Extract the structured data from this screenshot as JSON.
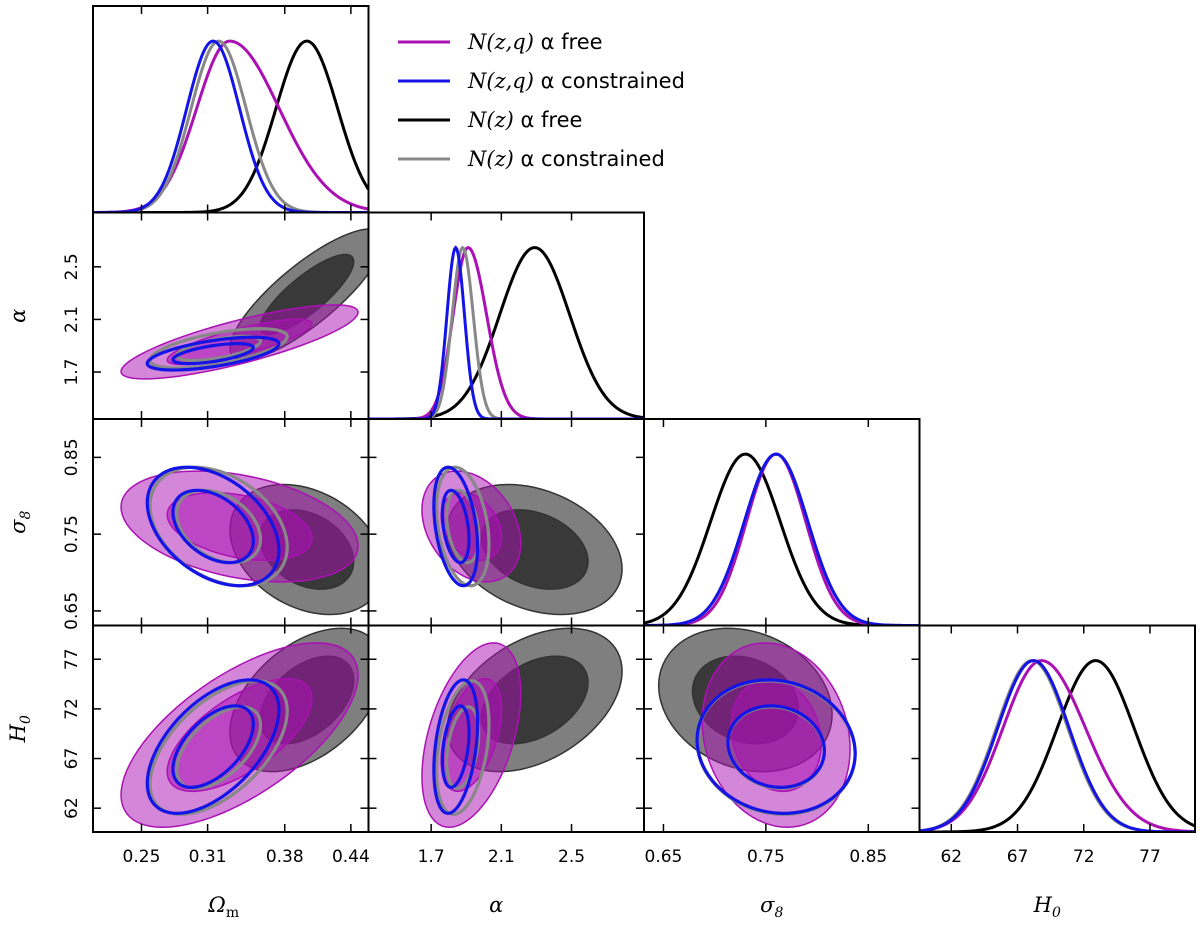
{
  "chart_data": {
    "type": "corner-plot",
    "title": "",
    "parameters": [
      {
        "key": "Om",
        "label": "Ωm",
        "label_main": "Ω",
        "label_sub": "m",
        "range": [
          0.206,
          0.456
        ],
        "ticks": [
          0.25,
          0.31,
          0.38,
          0.44
        ],
        "tick_labels": [
          "0.25",
          "0.31",
          "0.38",
          "0.44"
        ]
      },
      {
        "key": "alpha",
        "label": "α",
        "label_main": "α",
        "label_sub": "",
        "range": [
          1.343,
          2.913
        ],
        "ticks": [
          1.7,
          2.1,
          2.5
        ],
        "tick_labels": [
          "1.7",
          "2.1",
          "2.5"
        ]
      },
      {
        "key": "s8",
        "label": "σ8",
        "label_main": "σ",
        "label_sub": "8",
        "range": [
          0.631,
          0.9
        ],
        "ticks": [
          0.65,
          0.75,
          0.85
        ],
        "tick_labels": [
          "0.65",
          "0.75",
          "0.85"
        ]
      },
      {
        "key": "H0",
        "label": "H0",
        "label_main": "H",
        "label_sub": "0",
        "range": [
          59.6,
          80.4
        ],
        "ticks": [
          62,
          67,
          72,
          77
        ],
        "tick_labels": [
          "62",
          "67",
          "72",
          "77"
        ]
      }
    ],
    "legend": {
      "position": "top-right",
      "entries": [
        {
          "math": "N(z,q)",
          "text": " α free",
          "color": "#aa10b4"
        },
        {
          "math": "N(z,q)",
          "text": " α constrained",
          "color": "#1414e6"
        },
        {
          "math": "N(z)",
          "text": " α free",
          "color": "#000000"
        },
        {
          "math": "N(z)",
          "text": " α constrained",
          "color": "#888888"
        }
      ]
    },
    "series": [
      {
        "name": "N(z,q) α free",
        "color": "#aa10b4",
        "style": "filled",
        "mean": {
          "Om": 0.33,
          "alpha": 1.91,
          "s8": 0.76,
          "H0": 68.8
        },
        "sigma": {
          "Om": 0.03,
          "alpha": 0.085,
          "s8": 0.029,
          "H0": 2.9
        },
        "skew": {
          "Om": 2.0,
          "alpha": 1.5,
          "s8": 0,
          "H0": 1.3
        },
        "corr": {
          "Om-alpha": 0.8,
          "Om-s8": -0.35,
          "Om-H0": 0.65,
          "alpha-s8": -0.3,
          "alpha-H0": 0.45,
          "s8-H0": -0.15
        }
      },
      {
        "name": "N(z,q) α constrained",
        "color": "#1414e6",
        "style": "outline",
        "mean": {
          "Om": 0.315,
          "alpha": 1.84,
          "s8": 0.76,
          "H0": 68.2
        },
        "sigma": {
          "Om": 0.024,
          "alpha": 0.05,
          "s8": 0.031,
          "H0": 2.7
        },
        "skew": {
          "Om": 0,
          "alpha": 0,
          "s8": 0,
          "H0": 0
        },
        "corr": {
          "Om-alpha": 0.6,
          "Om-s8": -0.4,
          "Om-H0": 0.55,
          "alpha-s8": -0.35,
          "alpha-H0": 0.35,
          "s8-H0": -0.1
        }
      },
      {
        "name": "N(z) α free",
        "color": "#000000",
        "style": "filled",
        "mean": {
          "Om": 0.4,
          "alpha": 2.29,
          "s8": 0.73,
          "H0": 72.9
        },
        "sigma": {
          "Om": 0.028,
          "alpha": 0.2,
          "s8": 0.034,
          "H0": 2.9
        },
        "skew": {
          "Om": 0,
          "alpha": 0,
          "s8": 0,
          "H0": 0
        },
        "corr": {
          "Om-alpha": 0.82,
          "Om-s8": -0.3,
          "Om-H0": 0.45,
          "alpha-s8": -0.3,
          "alpha-H0": 0.4,
          "s8-H0": -0.2
        }
      },
      {
        "name": "N(z) α constrained",
        "color": "#888888",
        "style": "outline",
        "mean": {
          "Om": 0.32,
          "alpha": 1.88,
          "s8": 0.76,
          "H0": 68.1
        },
        "sigma": {
          "Om": 0.025,
          "alpha": 0.06,
          "s8": 0.031,
          "H0": 2.7
        },
        "skew": {
          "Om": 0,
          "alpha": 0,
          "s8": 0,
          "H0": 0
        },
        "corr": {
          "Om-alpha": 0.6,
          "Om-s8": -0.35,
          "Om-H0": 0.55,
          "alpha-s8": -0.3,
          "alpha-H0": 0.35,
          "s8-H0": -0.1
        }
      }
    ],
    "contour_levels": [
      "68%",
      "95%"
    ]
  }
}
